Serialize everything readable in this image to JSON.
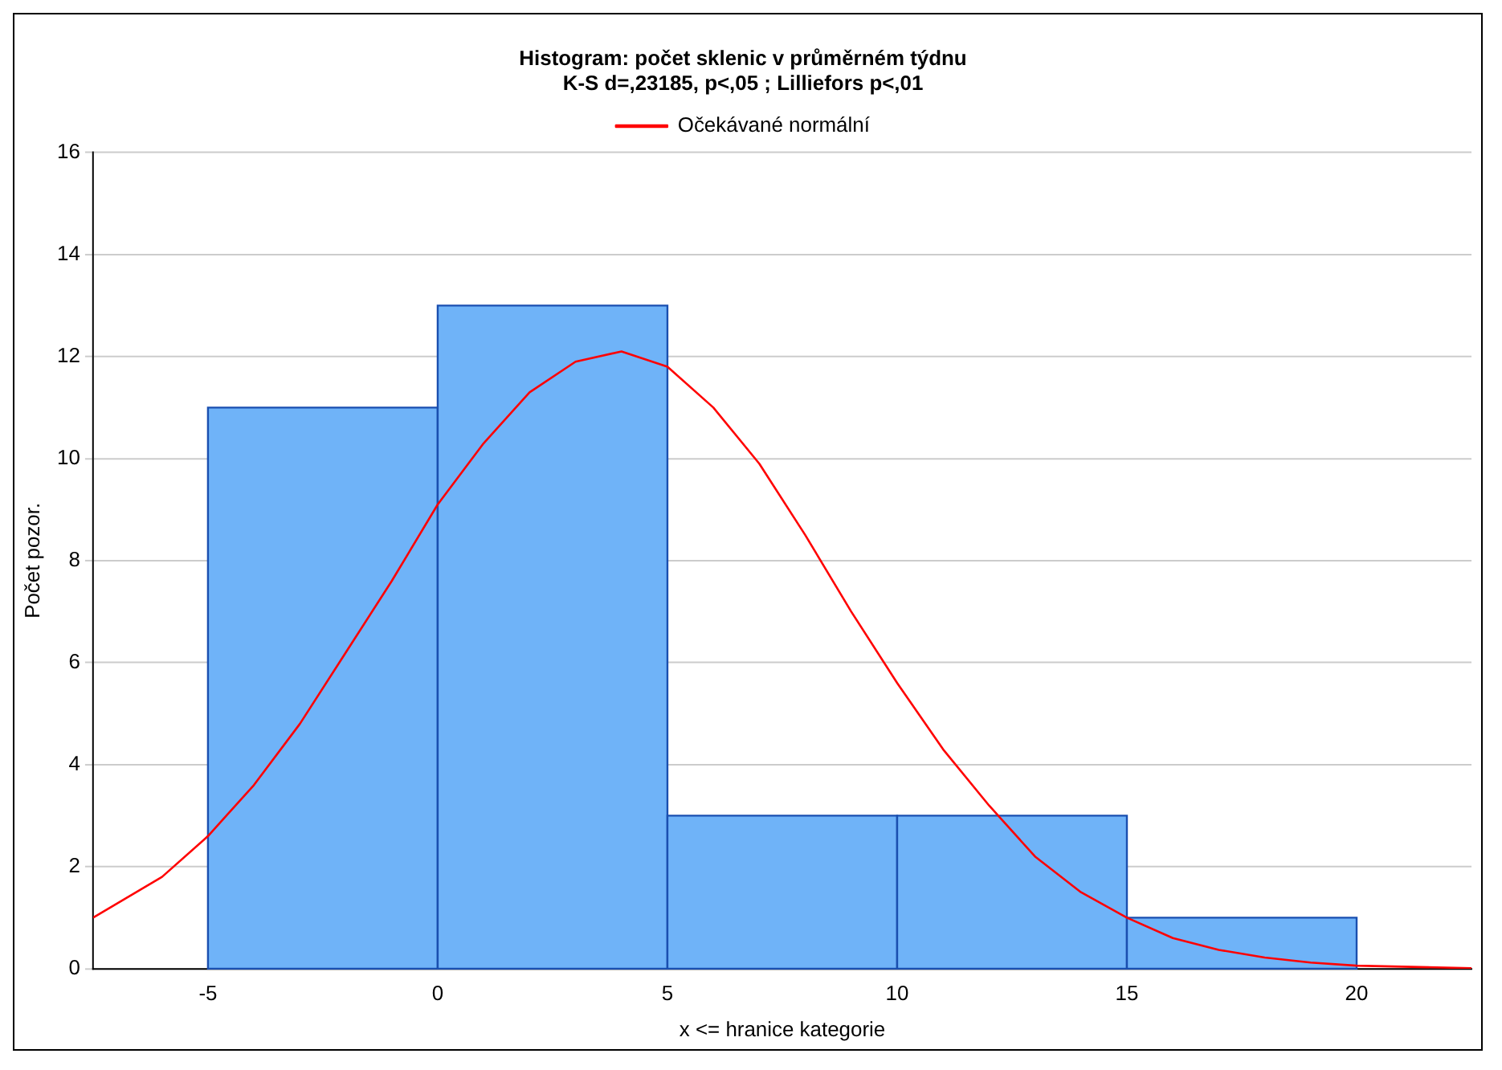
{
  "chart_data": {
    "type": "histogram",
    "title": "Histogram: počet sklenic v průměrném týdnu",
    "subtitle": "K-S d=,23185, p<,05 ; Lilliefors p<,01",
    "xlabel": "x <= hranice kategorie",
    "ylabel": "Počet pozor.",
    "bins": [
      -5,
      0,
      5,
      10,
      15,
      20
    ],
    "values": [
      11,
      13,
      3,
      3,
      1
    ],
    "color": "#6fb3f8",
    "series": [
      {
        "type": "line",
        "name": "Očekávané normální",
        "color": "#ff0000",
        "x": [
          -7.5,
          -6,
          -5,
          -4,
          -3,
          -2,
          -1,
          0,
          1,
          2,
          3,
          4,
          5,
          6,
          7,
          8,
          9,
          10,
          11,
          12,
          13,
          14,
          15,
          16,
          17,
          18,
          19,
          20,
          22.5
        ],
        "values": [
          1.0,
          1.8,
          2.6,
          3.6,
          4.8,
          6.2,
          7.6,
          9.1,
          10.3,
          11.3,
          11.9,
          12.1,
          11.8,
          11.0,
          9.9,
          8.5,
          7.0,
          5.6,
          4.3,
          3.2,
          2.2,
          1.5,
          1.0,
          0.6,
          0.37,
          0.22,
          0.12,
          0.06,
          0.01
        ]
      }
    ],
    "xlim": [
      -7.5,
      22.5
    ],
    "xticks": [
      -5,
      0,
      5,
      10,
      15,
      20
    ],
    "ylim": [
      0,
      16
    ],
    "yticks": [
      0,
      2,
      4,
      6,
      8,
      10,
      12,
      14,
      16
    ],
    "grid": "y",
    "legend": "top"
  }
}
